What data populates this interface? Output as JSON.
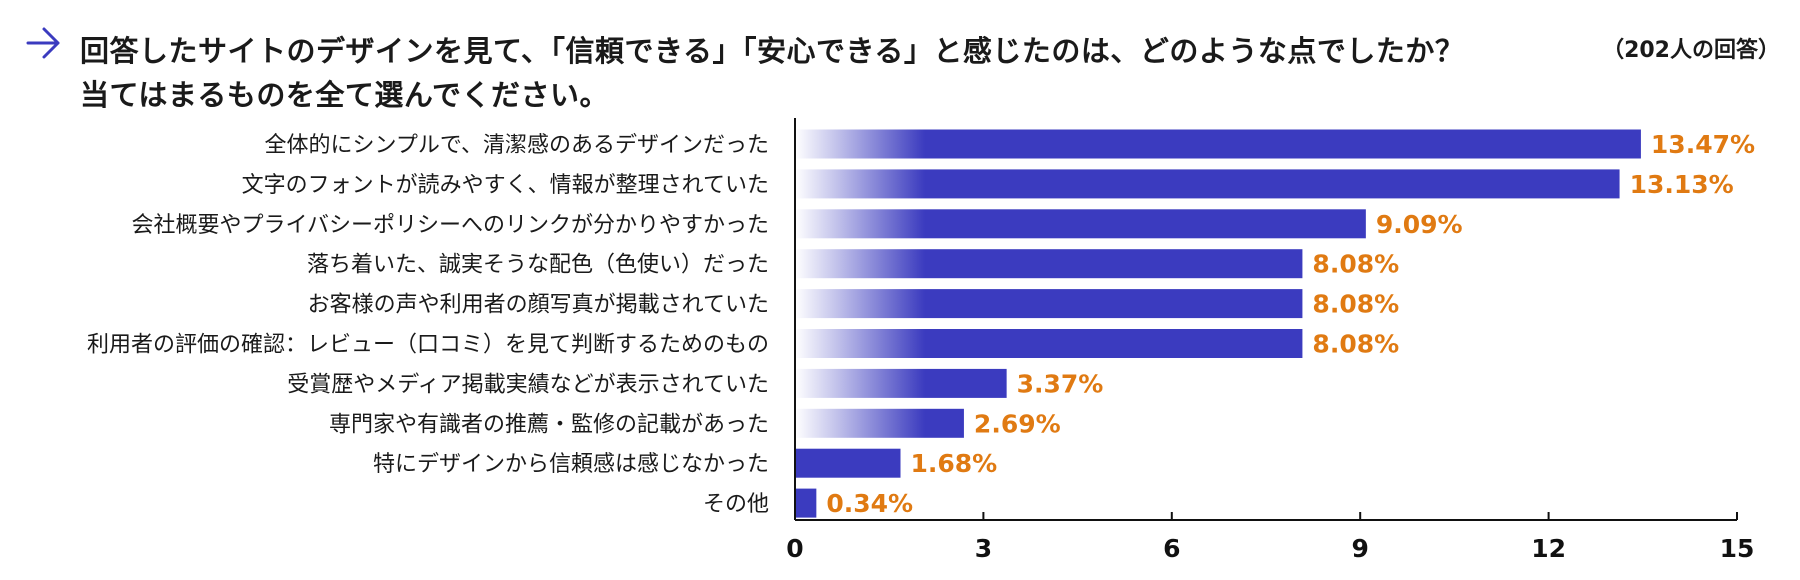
{
  "title": {
    "line1": "回答したサイトのデザインを見て、「信頼できる」「安心できる」と感じたのは、どのような点でしたか？",
    "line2": "当てはまるものを全て選んでください。"
  },
  "respondents_note": "（202人の回答）",
  "icons": {
    "title_arrow": "arrow-right-icon"
  },
  "colors": {
    "bar": "#3b3bbf",
    "value_label": "#e07a12",
    "accent_arrow": "#3b3bbf"
  },
  "chart_data": {
    "type": "bar",
    "orientation": "horizontal",
    "categories": [
      "全体的にシンプルで、清潔感のあるデザインだった",
      "文字のフォントが読みやすく、情報が整理されていた",
      "会社概要やプライバシーポリシーへのリンクが分かりやすかった",
      "落ち着いた、誠実そうな配色（色使い）だった",
      "お客様の声や利用者の顔写真が掲載されていた",
      "利用者の評価の確認：レビュー（口コミ）を見て判断するためのもの",
      "受賞歴やメディア掲載実績などが表示されていた",
      "専門家や有識者の推薦・監修の記載があった",
      "特にデザインから信頼感は感じなかった",
      "その他"
    ],
    "values": [
      13.47,
      13.13,
      9.09,
      8.08,
      8.08,
      8.08,
      3.37,
      2.69,
      1.68,
      0.34
    ],
    "value_labels": [
      "13.47%",
      "13.13%",
      "9.09%",
      "8.08%",
      "8.08%",
      "8.08%",
      "3.37%",
      "2.69%",
      "1.68%",
      "0.34%"
    ],
    "xlim": [
      0,
      15
    ],
    "xticks": [
      0,
      3,
      6,
      9,
      12,
      15
    ],
    "grid": false,
    "legend": "none"
  }
}
